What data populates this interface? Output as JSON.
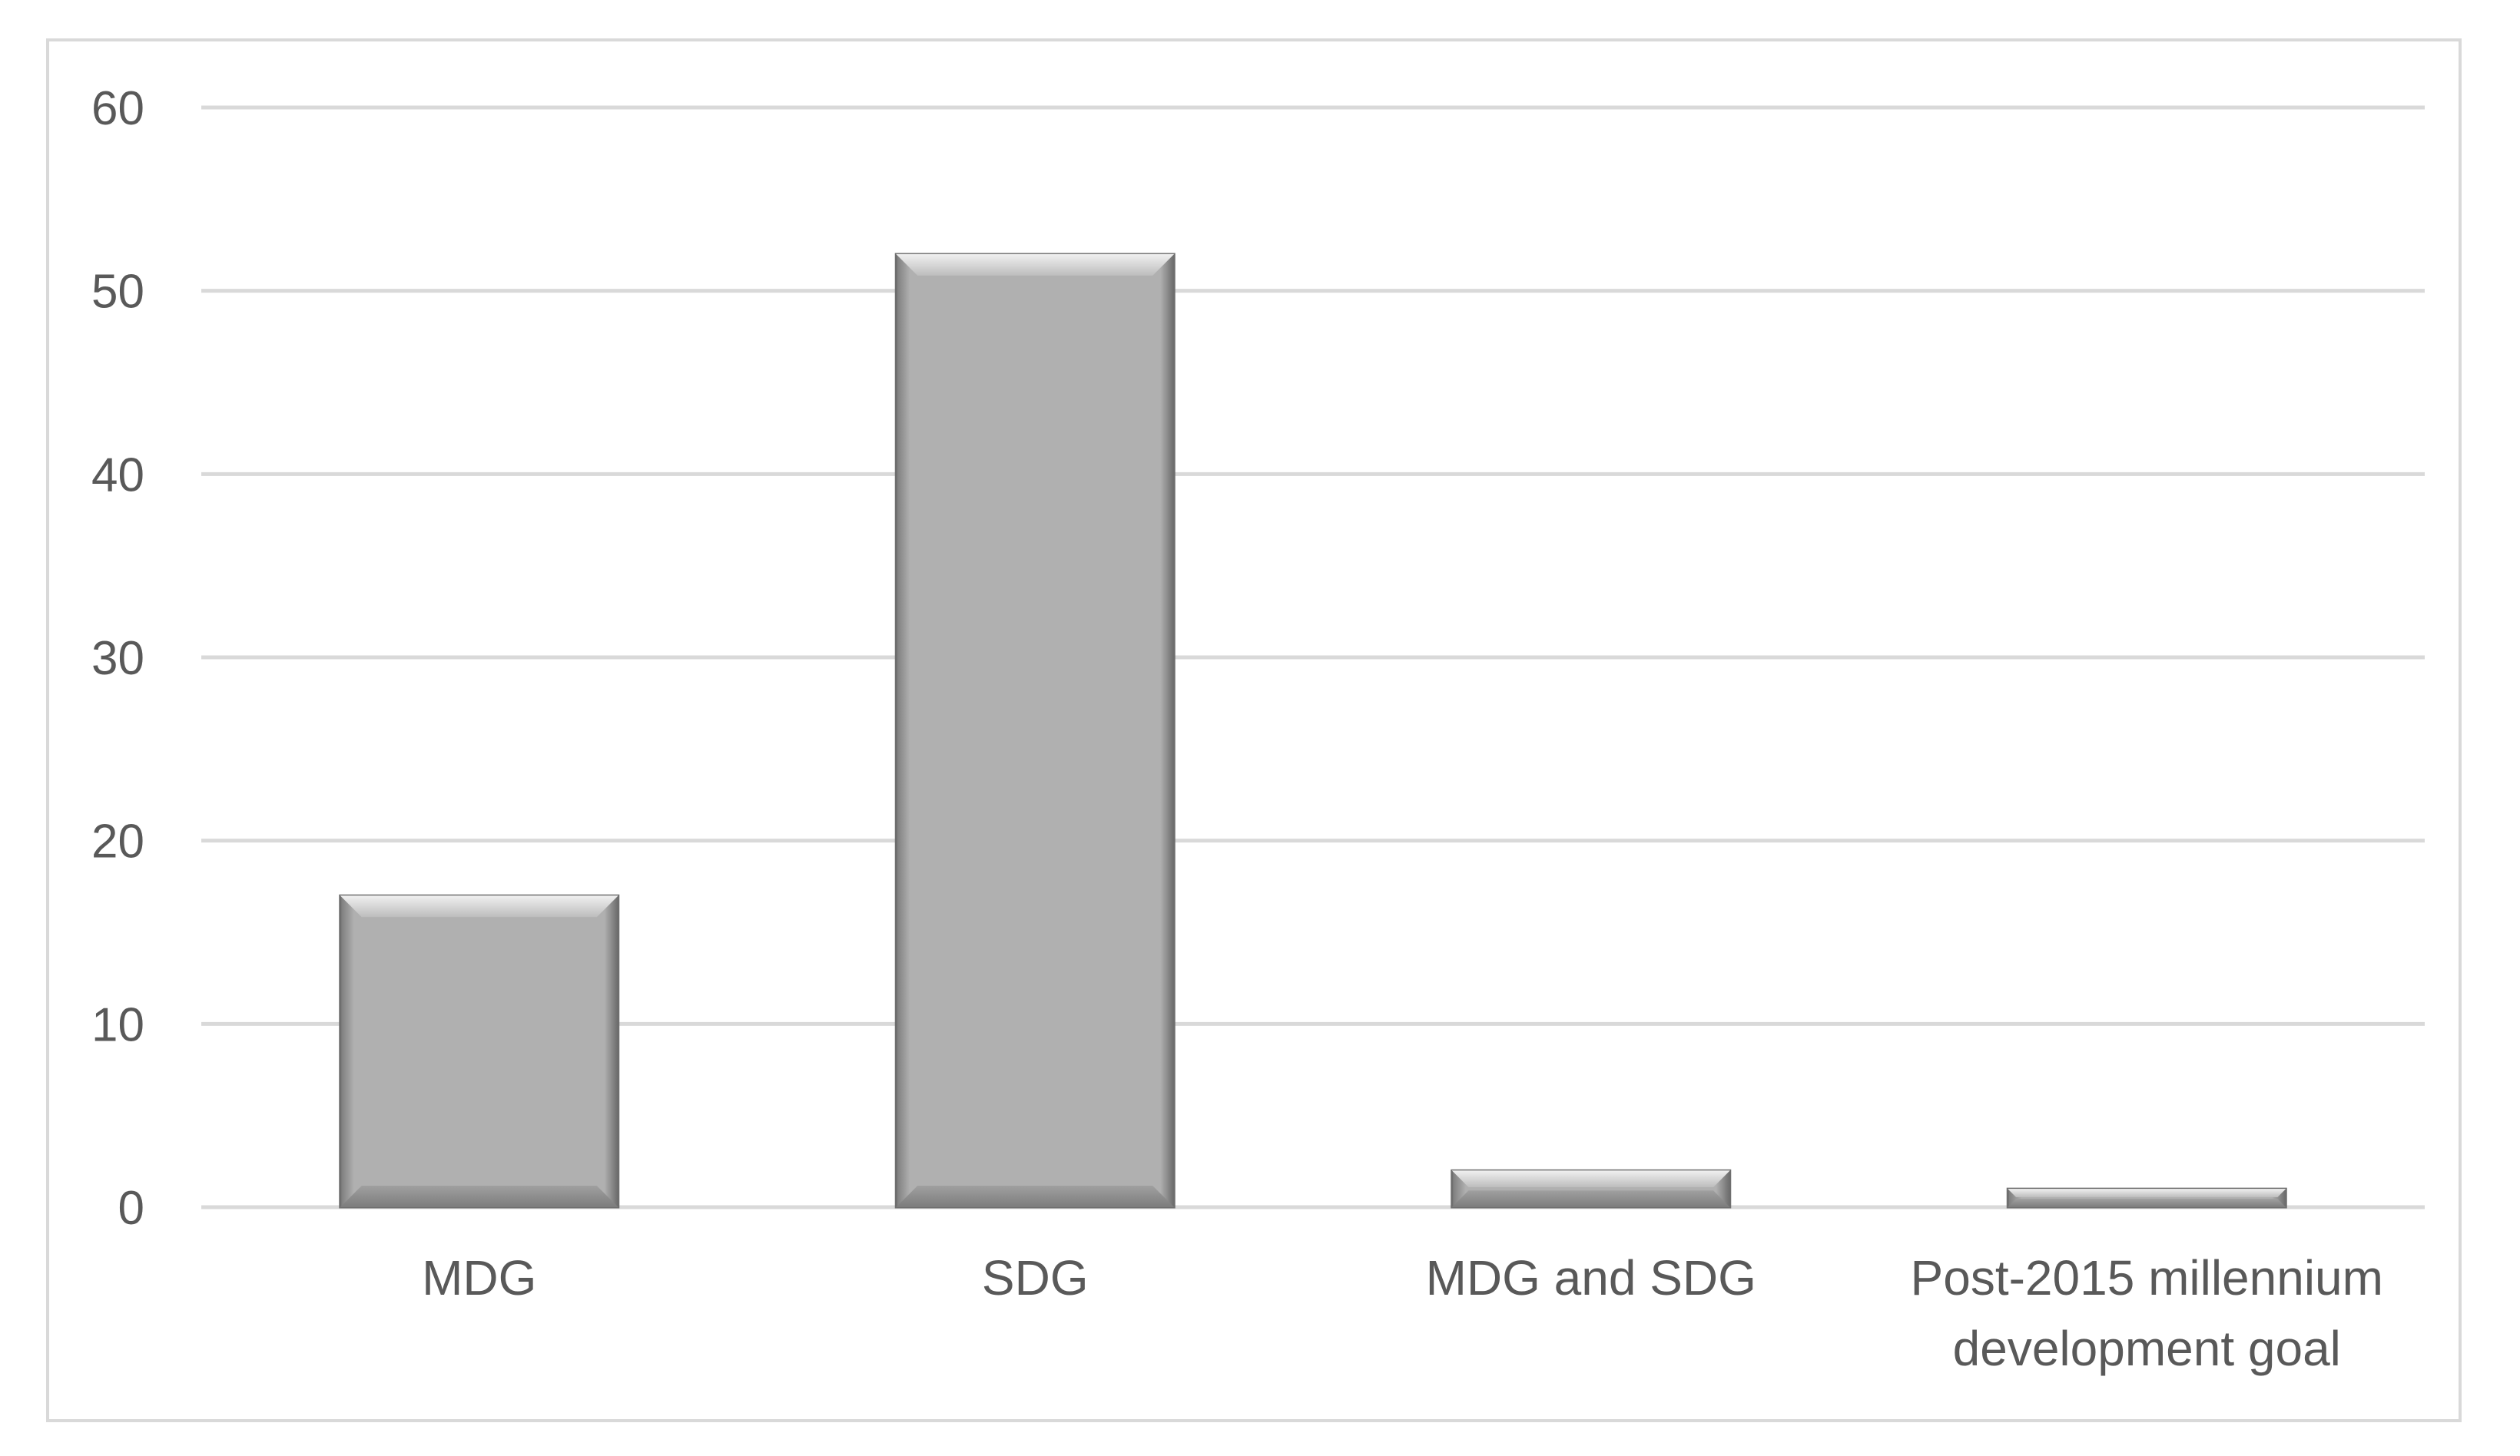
{
  "chart_data": {
    "type": "bar",
    "categories": [
      [
        "MDG"
      ],
      [
        "SDG"
      ],
      [
        "MDG and SDG"
      ],
      [
        "Post-2015 millennium",
        "development goal"
      ]
    ],
    "values": [
      17,
      52,
      2,
      1
    ],
    "yticks": [
      "0",
      "10",
      "20",
      "30",
      "40",
      "50",
      "60"
    ],
    "ylim": [
      0,
      60
    ],
    "grid": true,
    "legend": "none",
    "colors": {
      "bar_fill": "#b0b0b0",
      "bar_edge_light": "#dcdcdc",
      "bar_edge_dark": "#6e6e6e",
      "gridline": "#d9d9d9",
      "label": "#595959"
    }
  }
}
